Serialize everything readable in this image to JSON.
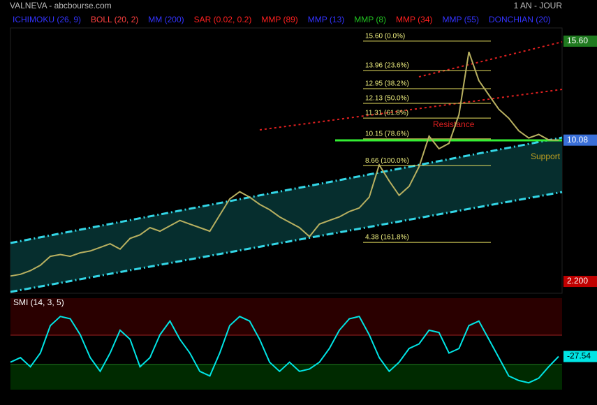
{
  "header": {
    "title": "VALNEVA - abcbourse.com",
    "period": "1 AN - JOUR"
  },
  "indicators": [
    {
      "name": "ICHIMOKU (26, 9)",
      "color": "#3333ff"
    },
    {
      "name": "BOLL (20, 2)",
      "color": "#ff4040"
    },
    {
      "name": "MM (200)",
      "color": "#3333ff"
    },
    {
      "name": "SAR (0.02, 0.2)",
      "color": "#ff2020"
    },
    {
      "name": "MMP (89)",
      "color": "#ff2020"
    },
    {
      "name": "MMP (13)",
      "color": "#3333ff"
    },
    {
      "name": "MMP (8)",
      "color": "#20c020"
    },
    {
      "name": "MMP (34)",
      "color": "#ff2020"
    },
    {
      "name": "MMP (55)",
      "color": "#3333ff"
    },
    {
      "name": "DONCHIAN (20)",
      "color": "#3333ff"
    }
  ],
  "chart_data": [
    {
      "type": "line",
      "ylim": [
        1.54,
        17.31
      ],
      "price_tags": [
        {
          "value": 15.6,
          "label": "15.60",
          "color": "#1f7a1f"
        },
        {
          "value": 10.08,
          "label": "10.08",
          "color": "#3a6fd8"
        },
        {
          "value": 2.2,
          "label": "2.200",
          "color": "#c00000"
        }
      ],
      "fib_levels": [
        {
          "value": 15.6,
          "label": "15.60  (0.0%)"
        },
        {
          "value": 13.96,
          "label": "13.96  (23.6%)"
        },
        {
          "value": 12.95,
          "label": "12.95  (38.2%)"
        },
        {
          "value": 12.13,
          "label": "12.13  (50.0%)"
        },
        {
          "value": 11.31,
          "label": "11.31  (61.8%)"
        },
        {
          "value": 10.15,
          "label": "10.15  (78.6%)"
        },
        {
          "value": 8.66,
          "label": "8.66  (100.0%)"
        },
        {
          "value": 4.38,
          "label": "4.38  (161.8%)"
        }
      ],
      "annotations": [
        "Resistance",
        "Support"
      ],
      "series": [
        {
          "color": "#b8b060",
          "values": [
            2.5,
            2.6,
            2.8,
            3.1,
            3.6,
            3.7,
            3.6,
            3.8,
            3.9,
            4.1,
            4.3,
            4.0,
            4.6,
            4.8,
            5.2,
            5.0,
            5.3,
            5.6,
            5.4,
            5.2,
            5.0,
            5.9,
            6.8,
            7.2,
            6.9,
            6.5,
            6.2,
            5.8,
            5.5,
            5.2,
            4.7,
            5.4,
            5.6,
            5.8,
            6.1,
            6.3,
            6.9,
            8.7,
            7.8,
            7.0,
            7.5,
            8.6,
            10.3,
            9.6,
            9.9,
            11.5,
            15.0,
            13.4,
            12.6,
            11.8,
            11.3,
            10.6,
            10.2,
            10.4,
            10.1,
            10.08
          ]
        }
      ]
    },
    {
      "type": "line",
      "title": "SMI (14, 3, 5)",
      "ylim": [
        -100,
        100
      ],
      "price_tags": [
        {
          "value": -27.54,
          "label": "-27.54",
          "color": "#00e5e5"
        }
      ],
      "series": [
        {
          "color": "#00e5e5",
          "values": [
            -40,
            -30,
            -50,
            -20,
            40,
            60,
            55,
            20,
            -30,
            -60,
            -20,
            30,
            10,
            -50,
            -30,
            20,
            50,
            10,
            -20,
            -60,
            -70,
            -20,
            40,
            60,
            50,
            10,
            -40,
            -60,
            -40,
            -60,
            -55,
            -40,
            -10,
            30,
            55,
            60,
            20,
            -30,
            -60,
            -40,
            -10,
            0,
            30,
            25,
            -20,
            -10,
            40,
            50,
            10,
            -30,
            -70,
            -80,
            -85,
            -75,
            -50,
            -27.54
          ]
        }
      ]
    }
  ]
}
